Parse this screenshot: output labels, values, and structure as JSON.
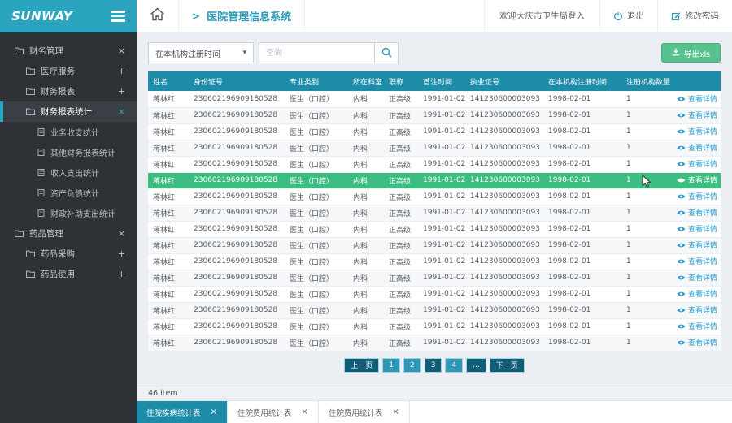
{
  "sidebar": {
    "logo": "SUNWAY",
    "items": [
      {
        "label": "财务管理",
        "level": 1,
        "toggle": "×",
        "active": false
      },
      {
        "label": "医疗服务",
        "level": 2,
        "toggle": "+",
        "active": false
      },
      {
        "label": "财务报表",
        "level": 2,
        "toggle": "+",
        "active": false
      },
      {
        "label": "财务报表统计",
        "level": 2,
        "toggle": "×",
        "active": true
      },
      {
        "label": "业务收支统计",
        "level": 3,
        "toggle": "",
        "active": false
      },
      {
        "label": "其他财务报表统计",
        "level": 3,
        "toggle": "",
        "active": false
      },
      {
        "label": "收入支出统计",
        "level": 3,
        "toggle": "",
        "active": false
      },
      {
        "label": "资产负债统计",
        "level": 3,
        "toggle": "",
        "active": false
      },
      {
        "label": "财政补助支出统计",
        "level": 3,
        "toggle": "",
        "active": false
      },
      {
        "label": "药品管理",
        "level": 1,
        "toggle": "×",
        "active": false
      },
      {
        "label": "药品采购",
        "level": 2,
        "toggle": "+",
        "active": false
      },
      {
        "label": "药品使用",
        "level": 2,
        "toggle": "+",
        "active": false
      }
    ]
  },
  "header": {
    "breadcrumb_separator": ">",
    "breadcrumb": "医院管理信息系统",
    "welcome": "欢迎大庆市卫生局登入",
    "logout_label": "退出",
    "change_password_label": "修改密码"
  },
  "toolbar": {
    "filter_value": "在本机构注册时间",
    "search_placeholder": "查询",
    "export_label": "导出xls"
  },
  "table": {
    "columns": [
      "姓名",
      "身份证号",
      "专业类别",
      "所在科室",
      "职称",
      "首注时间",
      "执业证号",
      "在本机构注册时间",
      "注册机构数量",
      ""
    ],
    "action_label": "查看详情",
    "highlighted_row_index": 5,
    "rows": [
      [
        "蒋林红",
        "230602196909180528",
        "医生（口腔）",
        "内科",
        "正高级",
        "1991-01-02",
        "141230600003093",
        "1998-02-01",
        "1"
      ],
      [
        "蒋林红",
        "230602196909180528",
        "医生（口腔）",
        "内科",
        "正高级",
        "1991-01-02",
        "141230600003093",
        "1998-02-01",
        "1"
      ],
      [
        "蒋林红",
        "230602196909180528",
        "医生（口腔）",
        "内科",
        "正高级",
        "1991-01-02",
        "141230600003093",
        "1998-02-01",
        "1"
      ],
      [
        "蒋林红",
        "230602196909180528",
        "医生（口腔）",
        "内科",
        "正高级",
        "1991-01-02",
        "141230600003093",
        "1998-02-01",
        "1"
      ],
      [
        "蒋林红",
        "230602196909180528",
        "医生（口腔）",
        "内科",
        "正高级",
        "1991-01-02",
        "141230600003093",
        "1998-02-01",
        "1"
      ],
      [
        "蒋林红",
        "230602196909180528",
        "医生（口腔）",
        "内科",
        "正高级",
        "1991-01-02",
        "141230600003093",
        "1998-02-01",
        "1"
      ],
      [
        "蒋林红",
        "230602196909180528",
        "医生（口腔）",
        "内科",
        "正高级",
        "1991-01-02",
        "141230600003093",
        "1998-02-01",
        "1"
      ],
      [
        "蒋林红",
        "230602196909180528",
        "医生（口腔）",
        "内科",
        "正高级",
        "1991-01-02",
        "141230600003093",
        "1998-02-01",
        "1"
      ],
      [
        "蒋林红",
        "230602196909180528",
        "医生（口腔）",
        "内科",
        "正高级",
        "1991-01-02",
        "141230600003093",
        "1998-02-01",
        "1"
      ],
      [
        "蒋林红",
        "230602196909180528",
        "医生（口腔）",
        "内科",
        "正高级",
        "1991-01-02",
        "141230600003093",
        "1998-02-01",
        "1"
      ],
      [
        "蒋林红",
        "230602196909180528",
        "医生（口腔）",
        "内科",
        "正高级",
        "1991-01-02",
        "141230600003093",
        "1998-02-01",
        "1"
      ],
      [
        "蒋林红",
        "230602196909180528",
        "医生（口腔）",
        "内科",
        "正高级",
        "1991-01-02",
        "141230600003093",
        "1998-02-01",
        "1"
      ],
      [
        "蒋林红",
        "230602196909180528",
        "医生（口腔）",
        "内科",
        "正高级",
        "1991-01-02",
        "141230600003093",
        "1998-02-01",
        "1"
      ],
      [
        "蒋林红",
        "230602196909180528",
        "医生（口腔）",
        "内科",
        "正高级",
        "1991-01-02",
        "141230600003093",
        "1998-02-01",
        "1"
      ],
      [
        "蒋林红",
        "230602196909180528",
        "医生（口腔）",
        "内科",
        "正高级",
        "1991-01-02",
        "141230600003093",
        "1998-02-01",
        "1"
      ],
      [
        "蒋林红",
        "230602196909180528",
        "医生（口腔）",
        "内科",
        "正高级",
        "1991-01-02",
        "141230600003093",
        "1998-02-01",
        "1"
      ]
    ]
  },
  "pagination": {
    "prev": "上一页",
    "pages": [
      "1",
      "2",
      "3",
      "4",
      "..."
    ],
    "active_page": "3",
    "next": "下一页"
  },
  "footer": {
    "item_count": "46 item",
    "tabs": [
      {
        "label": "住院疾病统计表",
        "active": true
      },
      {
        "label": "住院费用统计表",
        "active": false
      },
      {
        "label": "住院费用统计表",
        "active": false
      }
    ]
  },
  "icons": {
    "close": "×",
    "plus": "+",
    "chevron_down": "▾"
  },
  "colors": {
    "accent_teal": "#2ba4bf",
    "table_header_teal": "#1d8ca9",
    "highlight_green": "#3ebd82",
    "export_green": "#57c28d",
    "link_blue": "#2b9fd8",
    "sidebar_bg": "#2e3237",
    "pagination_dark": "#135e77",
    "pagination_light": "#2f97b4"
  }
}
